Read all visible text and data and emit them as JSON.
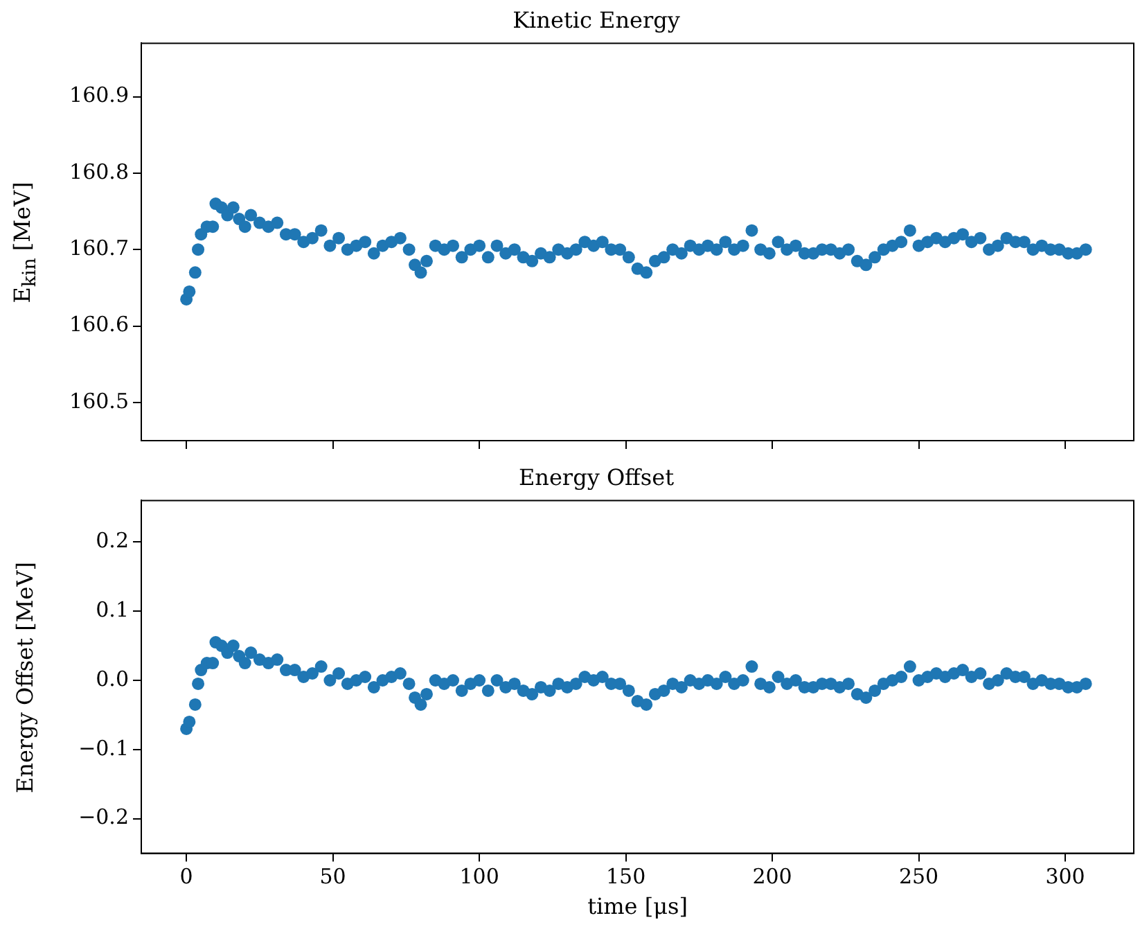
{
  "chart_data": [
    {
      "type": "scatter",
      "title": "Kinetic Energy",
      "ylabel": "E$_{kin}$ [MeV]",
      "color": "#1f77b4",
      "marker": "circle",
      "tick_labels": "y",
      "x": [
        0,
        1,
        3,
        4,
        5,
        7,
        9,
        10,
        12,
        14,
        16,
        18,
        20,
        22,
        25,
        28,
        31,
        34,
        37,
        40,
        43,
        46,
        49,
        52,
        55,
        58,
        61,
        64,
        67,
        70,
        73,
        76,
        78,
        80,
        82,
        85,
        88,
        91,
        94,
        97,
        100,
        103,
        106,
        109,
        112,
        115,
        118,
        121,
        124,
        127,
        130,
        133,
        136,
        139,
        142,
        145,
        148,
        151,
        154,
        157,
        160,
        163,
        166,
        169,
        172,
        175,
        178,
        181,
        184,
        187,
        190,
        193,
        196,
        199,
        202,
        205,
        208,
        211,
        214,
        217,
        220,
        223,
        226,
        229,
        232,
        235,
        238,
        241,
        244,
        247,
        250,
        253,
        256,
        259,
        262,
        265,
        268,
        271,
        274,
        277,
        280,
        283,
        286,
        289,
        292,
        295,
        298,
        301,
        304,
        307
      ],
      "values": [
        160.635,
        160.645,
        160.67,
        160.7,
        160.72,
        160.73,
        160.73,
        160.76,
        160.755,
        160.745,
        160.755,
        160.74,
        160.73,
        160.745,
        160.735,
        160.73,
        160.735,
        160.72,
        160.72,
        160.71,
        160.715,
        160.725,
        160.705,
        160.715,
        160.7,
        160.705,
        160.71,
        160.695,
        160.705,
        160.71,
        160.715,
        160.7,
        160.68,
        160.67,
        160.685,
        160.705,
        160.7,
        160.705,
        160.69,
        160.7,
        160.705,
        160.69,
        160.705,
        160.695,
        160.7,
        160.69,
        160.685,
        160.695,
        160.69,
        160.7,
        160.695,
        160.7,
        160.71,
        160.705,
        160.71,
        160.7,
        160.7,
        160.69,
        160.675,
        160.67,
        160.685,
        160.69,
        160.7,
        160.695,
        160.705,
        160.7,
        160.705,
        160.7,
        160.71,
        160.7,
        160.705,
        160.725,
        160.7,
        160.695,
        160.71,
        160.7,
        160.705,
        160.695,
        160.695,
        160.7,
        160.7,
        160.695,
        160.7,
        160.685,
        160.68,
        160.69,
        160.7,
        160.705,
        160.71,
        160.725,
        160.705,
        160.71,
        160.715,
        160.71,
        160.715,
        160.72,
        160.71,
        160.715,
        160.7,
        160.705,
        160.715,
        160.71,
        160.71,
        160.7,
        160.705,
        160.7,
        160.7,
        160.695,
        160.695,
        160.7
      ],
      "xlim": [
        -15.4,
        323.4
      ],
      "xticks": [
        0,
        50,
        100,
        150,
        200,
        250,
        300
      ],
      "ylim": [
        160.45,
        160.97
      ],
      "yticks": [
        160.5,
        160.6,
        160.7,
        160.8,
        160.9
      ]
    },
    {
      "type": "scatter",
      "title": "Energy Offset",
      "ylabel": "Energy Offset [MeV]",
      "xlabel": "time [μs]",
      "color": "#1f77b4",
      "marker": "circle",
      "x": [
        0,
        1,
        3,
        4,
        5,
        7,
        9,
        10,
        12,
        14,
        16,
        18,
        20,
        22,
        25,
        28,
        31,
        34,
        37,
        40,
        43,
        46,
        49,
        52,
        55,
        58,
        61,
        64,
        67,
        70,
        73,
        76,
        78,
        80,
        82,
        85,
        88,
        91,
        94,
        97,
        100,
        103,
        106,
        109,
        112,
        115,
        118,
        121,
        124,
        127,
        130,
        133,
        136,
        139,
        142,
        145,
        148,
        151,
        154,
        157,
        160,
        163,
        166,
        169,
        172,
        175,
        178,
        181,
        184,
        187,
        190,
        193,
        196,
        199,
        202,
        205,
        208,
        211,
        214,
        217,
        220,
        223,
        226,
        229,
        232,
        235,
        238,
        241,
        244,
        247,
        250,
        253,
        256,
        259,
        262,
        265,
        268,
        271,
        274,
        277,
        280,
        283,
        286,
        289,
        292,
        295,
        298,
        301,
        304,
        307
      ],
      "values": [
        -0.07,
        -0.06,
        -0.035,
        -0.005,
        0.015,
        0.025,
        0.025,
        0.055,
        0.05,
        0.04,
        0.05,
        0.035,
        0.025,
        0.04,
        0.03,
        0.025,
        0.03,
        0.015,
        0.015,
        0.005,
        0.01,
        0.02,
        0.0,
        0.01,
        -0.005,
        0.0,
        0.005,
        -0.01,
        0.0,
        0.005,
        0.01,
        -0.005,
        -0.025,
        -0.035,
        -0.02,
        0.0,
        -0.005,
        0.0,
        -0.015,
        -0.005,
        0.0,
        -0.015,
        0.0,
        -0.01,
        -0.005,
        -0.015,
        -0.02,
        -0.01,
        -0.015,
        -0.005,
        -0.01,
        -0.005,
        0.005,
        0.0,
        0.005,
        -0.005,
        -0.005,
        -0.015,
        -0.03,
        -0.035,
        -0.02,
        -0.015,
        -0.005,
        -0.01,
        0.0,
        -0.005,
        0.0,
        -0.005,
        0.005,
        -0.005,
        0.0,
        0.02,
        -0.005,
        -0.01,
        0.005,
        -0.005,
        0.0,
        -0.01,
        -0.01,
        -0.005,
        -0.005,
        -0.01,
        -0.005,
        -0.02,
        -0.025,
        -0.015,
        -0.005,
        0.0,
        0.005,
        0.02,
        0.0,
        0.005,
        0.01,
        0.005,
        0.01,
        0.015,
        0.005,
        0.01,
        -0.005,
        0.0,
        0.01,
        0.005,
        0.005,
        -0.005,
        0.0,
        -0.005,
        -0.005,
        -0.01,
        -0.01,
        -0.005
      ],
      "xlim": [
        -15.4,
        323.4
      ],
      "xticks": [
        0,
        50,
        100,
        150,
        200,
        250,
        300
      ],
      "ylim": [
        -0.25,
        0.26
      ],
      "yticks": [
        {
          "value": -0.2,
          "label": "−0.2"
        },
        {
          "value": -0.1,
          "label": "−0.1"
        },
        {
          "value": 0,
          "label": "0.0"
        },
        0.1,
        0.2
      ]
    }
  ]
}
